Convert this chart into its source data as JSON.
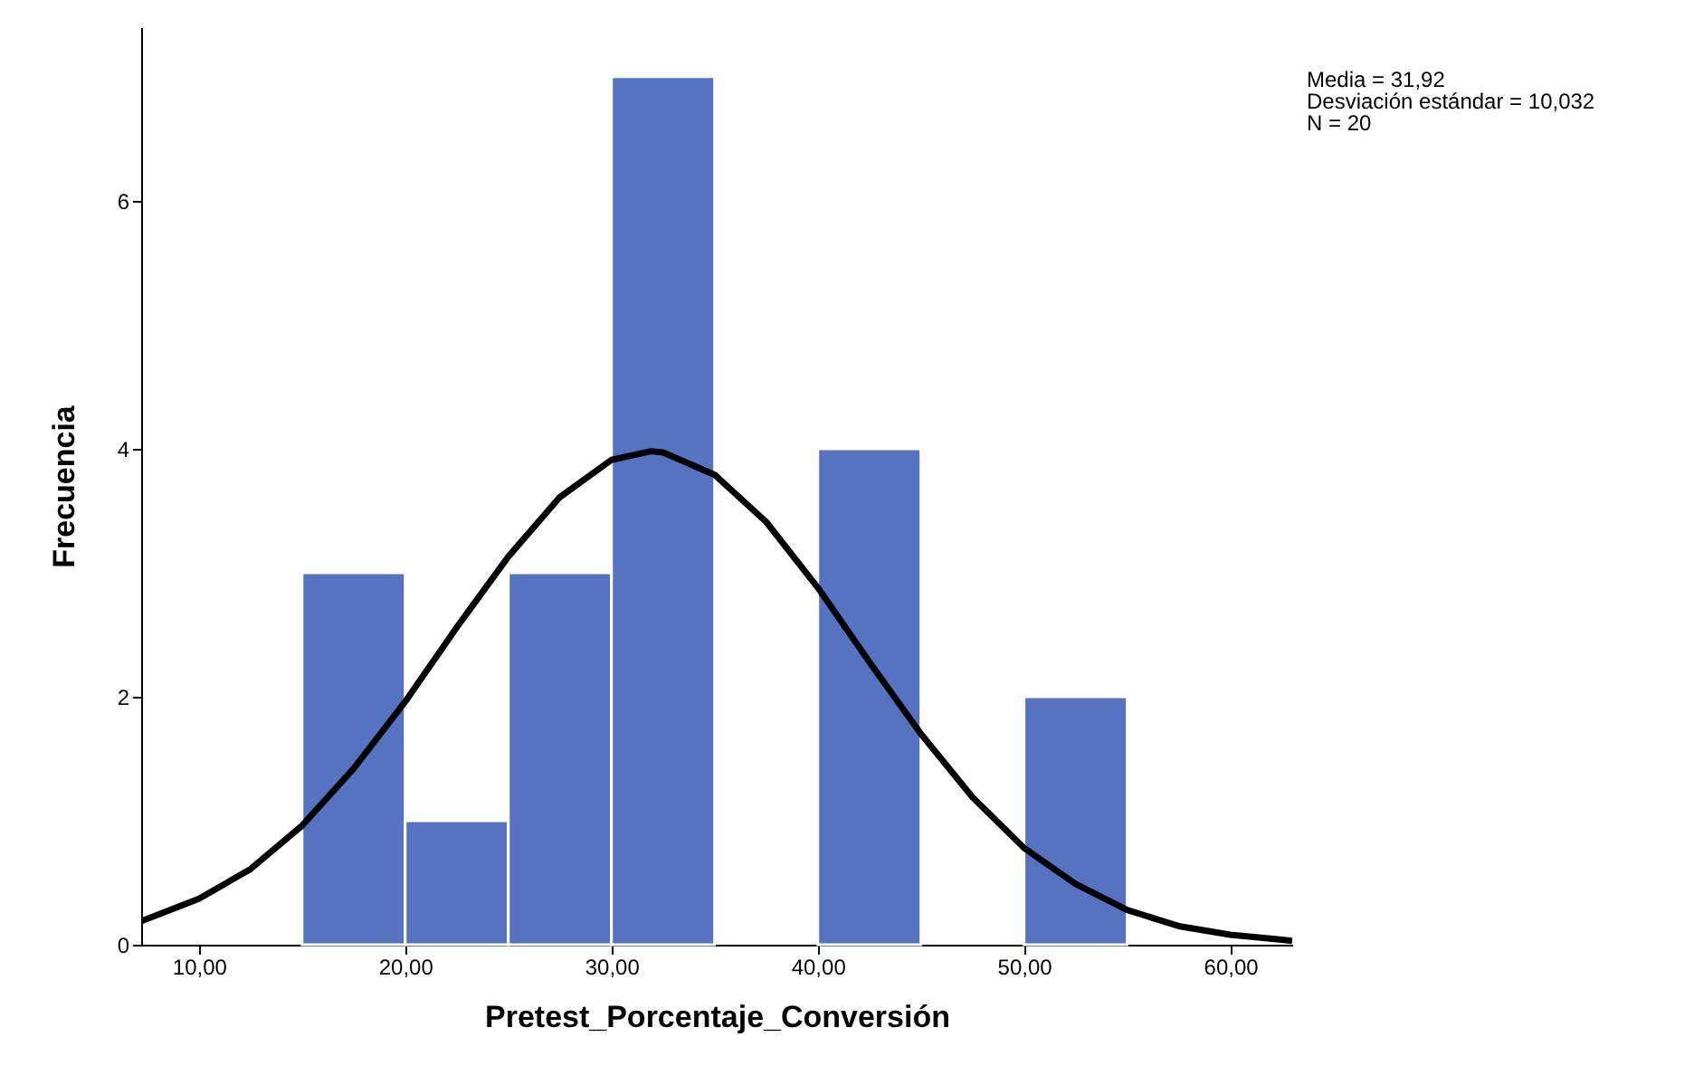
{
  "chart_data": {
    "type": "histogram",
    "xlabel": "Pretest_Porcentaje_Conversión",
    "ylabel": "Frecuencia",
    "bins": [
      15,
      20,
      25,
      30,
      35,
      40,
      45,
      50,
      55
    ],
    "values": [
      3,
      1,
      3,
      7,
      0,
      4,
      0,
      2
    ],
    "color": "#5573c1",
    "series": [
      {
        "type": "line",
        "color": "#000000",
        "x": [
          7.2,
          10,
          12.5,
          15,
          17.5,
          20,
          22.5,
          25,
          27.5,
          30,
          31.92,
          32.5,
          35,
          37.5,
          40,
          42.5,
          45,
          47.5,
          50,
          52.5,
          55,
          57.5,
          60,
          62.5,
          63
        ],
        "values": [
          0.19,
          0.37,
          0.61,
          0.96,
          1.42,
          1.96,
          2.56,
          3.13,
          3.61,
          3.91,
          3.98,
          3.97,
          3.79,
          3.41,
          2.88,
          2.28,
          1.7,
          1.19,
          0.78,
          0.49,
          0.28,
          0.15,
          0.08,
          0.04,
          0.03
        ]
      }
    ],
    "xlim": [
      7.2,
      63
    ],
    "xticks": [
      {
        "value": 10,
        "label": "10,00"
      },
      {
        "value": 20,
        "label": "20,00"
      },
      {
        "value": 30,
        "label": "30,00"
      },
      {
        "value": 40,
        "label": "40,00"
      },
      {
        "value": 50,
        "label": "50,00"
      },
      {
        "value": 60,
        "label": "60,00"
      }
    ],
    "ylim": [
      0,
      7.4
    ],
    "yticks": [
      0,
      2,
      4,
      6
    ],
    "grid": false,
    "line_style": "solid",
    "annotations": [
      "Media = 31,92",
      "Desviación estándar = 10,032",
      "N = 20"
    ]
  }
}
